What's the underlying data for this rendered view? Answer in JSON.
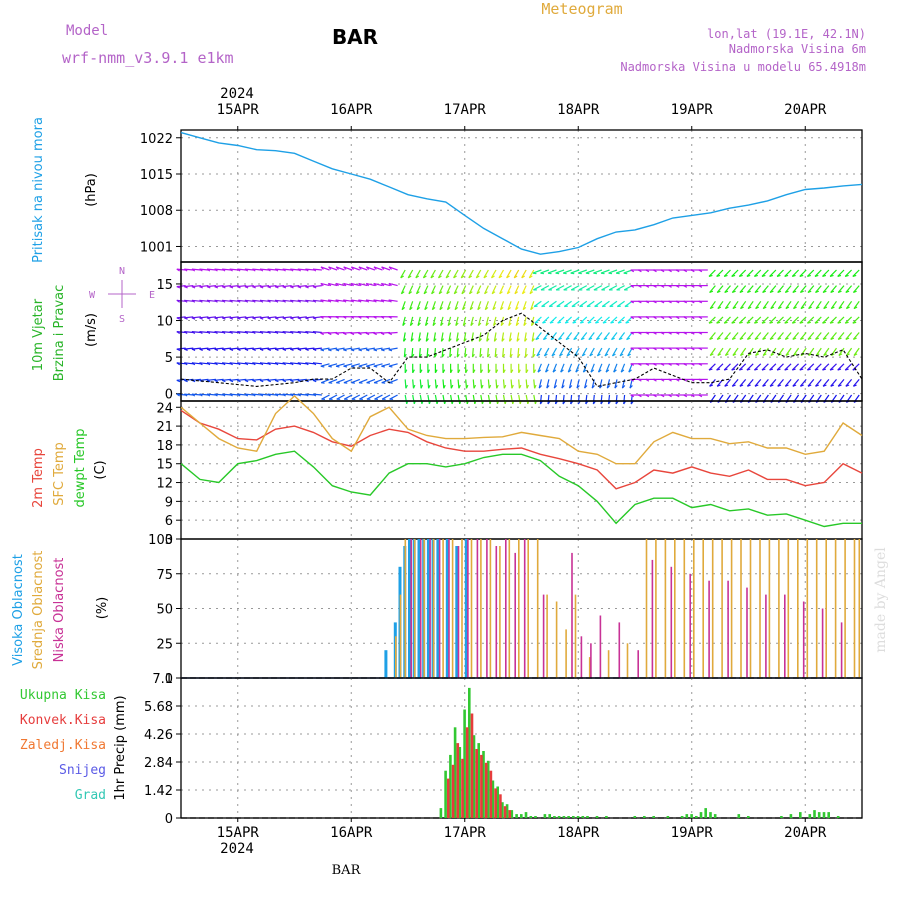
{
  "header": {
    "title": "BAR",
    "model_label": "Model",
    "model_name": "wrf-nmm_v3.9.1 e1km",
    "product": "Meteogram",
    "lonlat": "lon,lat (19.1E, 42.1N)",
    "altitude": "Nadmorska Visina 6m",
    "model_altitude": "Nadmorska Visina u modelu 65.4918m",
    "watermark": "made by Angel",
    "footer_station": "BAR",
    "year": "2024"
  },
  "colors": {
    "pressure": "#1ea0e6",
    "temp2m": "#e8463c",
    "sfc": "#e0aa3c",
    "dewpt": "#28c828",
    "cloud_high": "#1ea0e6",
    "cloud_mid": "#e0aa3c",
    "cloud_low": "#c83296",
    "precip_total": "#32c832",
    "precip_conv": "#e63c3c",
    "wind_label": "#28b428",
    "compass": "#b464c8"
  },
  "chart_data": [
    {
      "type": "line",
      "name": "pressure",
      "ylabel": "Pritisak na nivou mora",
      "unit": "(hPa)",
      "x_ticks": [
        "15APR",
        "16APR",
        "17APR",
        "18APR",
        "19APR",
        "20APR"
      ],
      "y_ticks": [
        1001,
        1008,
        1015,
        1022
      ],
      "ylim": [
        998,
        1023.5
      ],
      "grid": true,
      "x": [
        0,
        4,
        8,
        12,
        16,
        20,
        24,
        28,
        32,
        36,
        40,
        44,
        48,
        52,
        56,
        60,
        64,
        68,
        72,
        76,
        80,
        84,
        88,
        92,
        96,
        100,
        104,
        108,
        112,
        116,
        120,
        124,
        128,
        132,
        136,
        140,
        144
      ],
      "values": [
        1023,
        1022,
        1021,
        1020.5,
        1019.7,
        1019.5,
        1019,
        1017.5,
        1016,
        1015,
        1014,
        1012.5,
        1011,
        1010.2,
        1009.6,
        1007,
        1004.5,
        1002.5,
        1000.5,
        999.5,
        1000,
        1000.8,
        1002.5,
        1003.8,
        1004.2,
        1005.2,
        1006.5,
        1007,
        1007.5,
        1008.4,
        1009,
        1009.8,
        1011,
        1012,
        1012.3,
        1012.7,
        1013
      ]
    },
    {
      "type": "line",
      "name": "wind",
      "ylabel": "10m Vjetar Brzina i Pravac",
      "unit": "(m/s)",
      "compass": [
        "N",
        "W",
        "E",
        "S"
      ],
      "y_ticks": [
        0,
        5,
        10,
        15
      ],
      "ylim": [
        -1,
        18
      ],
      "grid": true,
      "series": [
        {
          "x": [
            0,
            8,
            16,
            24,
            28,
            32,
            36,
            40,
            44,
            48,
            52,
            56,
            60,
            64,
            68,
            72,
            76,
            80,
            84,
            88,
            92,
            96,
            100,
            104,
            108,
            112,
            116,
            120,
            124,
            128,
            132,
            136,
            140,
            144
          ],
          "values": [
            2,
            1.5,
            1,
            1.5,
            2,
            2,
            3.5,
            3.5,
            1.5,
            5,
            5,
            6,
            7,
            8,
            10,
            11,
            9,
            7,
            5,
            1,
            1.5,
            2,
            3.5,
            2.5,
            1.5,
            1.5,
            2,
            5.5,
            6,
            5,
            5.5,
            5,
            6,
            2
          ]
        }
      ]
    },
    {
      "type": "line",
      "name": "temperature",
      "ylabel": [
        "2m Temp",
        "SFC Temp",
        "dewpt Temp"
      ],
      "unit": "(C)",
      "y_ticks": [
        3,
        6,
        9,
        12,
        15,
        18,
        21,
        24
      ],
      "ylim": [
        3,
        25
      ],
      "grid": true,
      "series": [
        {
          "name": "2m Temp",
          "x": [
            0,
            4,
            8,
            12,
            16,
            20,
            24,
            28,
            32,
            36,
            40,
            44,
            48,
            52,
            56,
            60,
            64,
            68,
            72,
            76,
            80,
            84,
            88,
            92,
            96,
            100,
            104,
            108,
            112,
            116,
            120,
            124,
            128,
            132,
            136,
            140,
            144
          ],
          "values": [
            23.5,
            21.5,
            20.5,
            19,
            18.8,
            20.5,
            21,
            20,
            18.5,
            17.8,
            19.5,
            20.5,
            20,
            18.5,
            17.5,
            17,
            17,
            17.3,
            17.5,
            16.5,
            15.8,
            15,
            14,
            11,
            12,
            14,
            13.5,
            14.5,
            13.5,
            13,
            14,
            12.5,
            12.5,
            11.5,
            12,
            15,
            13.5
          ]
        },
        {
          "name": "SFC Temp",
          "x": [
            0,
            4,
            8,
            12,
            16,
            20,
            24,
            28,
            32,
            36,
            40,
            44,
            48,
            52,
            56,
            60,
            64,
            68,
            72,
            76,
            80,
            84,
            88,
            92,
            96,
            100,
            104,
            108,
            112,
            116,
            120,
            124,
            128,
            132,
            136,
            140,
            144
          ],
          "values": [
            24,
            21.5,
            19,
            17.5,
            17,
            23,
            25.8,
            23,
            19,
            17,
            22.5,
            24,
            20.5,
            19.5,
            19,
            19,
            19.2,
            19.3,
            20,
            19.5,
            19,
            17,
            16.5,
            15,
            15,
            18.5,
            20,
            19,
            19,
            18.2,
            18.5,
            17.5,
            17.5,
            16.5,
            17,
            21.5,
            19.5
          ]
        },
        {
          "name": "dewpt Temp",
          "x": [
            0,
            4,
            8,
            12,
            16,
            20,
            24,
            28,
            32,
            36,
            40,
            44,
            48,
            52,
            56,
            60,
            64,
            68,
            72,
            76,
            80,
            84,
            88,
            92,
            96,
            100,
            104,
            108,
            112,
            116,
            120,
            124,
            128,
            132,
            136,
            140,
            144
          ],
          "values": [
            15,
            12.5,
            12,
            15,
            15.5,
            16.5,
            17,
            14.5,
            11.5,
            10.5,
            10,
            13.5,
            15,
            15,
            14.5,
            15,
            16,
            16.5,
            16.5,
            15.5,
            13,
            11.5,
            9,
            5.5,
            8.5,
            9.5,
            9.5,
            8,
            8.5,
            7.5,
            7.8,
            6.8,
            7,
            6,
            5,
            5.5,
            5.5
          ]
        }
      ]
    },
    {
      "type": "bar",
      "name": "cloud_cover",
      "ylabel": [
        "Visoka Oblacnost",
        "Srednja Oblacnost",
        "Niska Oblacnost"
      ],
      "unit": "(%)",
      "y_ticks": [
        0,
        25,
        50,
        75,
        100
      ],
      "ylim": [
        0,
        100
      ],
      "grid": true,
      "series": [
        {
          "name": "Visoka Oblacnost",
          "x": [
            43,
            45,
            46,
            47,
            48,
            49,
            50,
            51,
            52,
            53,
            54,
            56,
            58,
            60
          ],
          "values": [
            20,
            40,
            80,
            95,
            100,
            100,
            100,
            100,
            100,
            100,
            100,
            100,
            95,
            100
          ]
        },
        {
          "name": "Srednja Oblacnost",
          "x": [
            45,
            46,
            47,
            49,
            51,
            53,
            55,
            57,
            59,
            61,
            63,
            65,
            67,
            69,
            71,
            73,
            75,
            77,
            79,
            81,
            83,
            86,
            90,
            94,
            98,
            100,
            102,
            104,
            106,
            108,
            110,
            112,
            114,
            116,
            118,
            120,
            122,
            124,
            126,
            128,
            130,
            132,
            134,
            136,
            138,
            140,
            142,
            143
          ],
          "values": [
            30,
            60,
            100,
            100,
            100,
            100,
            100,
            100,
            100,
            100,
            100,
            100,
            95,
            100,
            100,
            100,
            100,
            60,
            55,
            35,
            60,
            15,
            20,
            25,
            100,
            100,
            100,
            100,
            100,
            100,
            100,
            100,
            100,
            100,
            100,
            100,
            100,
            100,
            100,
            100,
            100,
            100,
            100,
            100,
            100,
            100,
            100,
            100
          ]
        },
        {
          "name": "Niska Oblacnost",
          "x": [
            48,
            50,
            52,
            54,
            56,
            58,
            60,
            62,
            64,
            66,
            68,
            70,
            72,
            76,
            82,
            84,
            86,
            88,
            92,
            96,
            99,
            103,
            107,
            111,
            115,
            119,
            123,
            127,
            131,
            135,
            139
          ],
          "values": [
            100,
            100,
            100,
            100,
            100,
            95,
            100,
            100,
            100,
            95,
            100,
            90,
            100,
            60,
            90,
            30,
            25,
            45,
            40,
            20,
            85,
            80,
            75,
            70,
            70,
            65,
            60,
            60,
            55,
            50,
            40
          ]
        }
      ]
    },
    {
      "type": "bar",
      "name": "precipitation",
      "ylabel": "1hr Precip",
      "unit": "(mm)",
      "legend": [
        "Ukupna Kisa",
        "Konvek.Kisa",
        "Zaledj.Kisa",
        "Snijeg",
        "Grad"
      ],
      "y_ticks": [
        "0",
        "1.42",
        "2.84",
        "4.26",
        "5.68",
        "7.1"
      ],
      "ylim": [
        0,
        7.1
      ],
      "grid": true,
      "x_ticks": [
        "15APR",
        "16APR",
        "17APR",
        "18APR",
        "19APR",
        "20APR"
      ],
      "series": [
        {
          "name": "Ukupna Kisa",
          "x": [
            55,
            56,
            57,
            58,
            59,
            60,
            61,
            62,
            63,
            64,
            65,
            66,
            67,
            68,
            69,
            70,
            71,
            72,
            73,
            74,
            75,
            77,
            78,
            79,
            80,
            81,
            82,
            83,
            84,
            85,
            86,
            88,
            90,
            96,
            98,
            100,
            103,
            106,
            107,
            108,
            109,
            110,
            111,
            112,
            113,
            118,
            120,
            127,
            129,
            131,
            133,
            134,
            135,
            136,
            137,
            139
          ],
          "values": [
            0.5,
            2.4,
            3.2,
            4.6,
            3.6,
            5.5,
            6.6,
            4.2,
            3.8,
            3.4,
            2.9,
            1.9,
            1.6,
            0.8,
            0.7,
            0.4,
            0.2,
            0.2,
            0.3,
            0.1,
            0.1,
            0.2,
            0.2,
            0.1,
            0.1,
            0.1,
            0.1,
            0.1,
            0.1,
            0.1,
            0.1,
            0.1,
            0.1,
            0.1,
            0.1,
            0.1,
            0.1,
            0.1,
            0.2,
            0.2,
            0.1,
            0.3,
            0.5,
            0.3,
            0.2,
            0.2,
            0.1,
            0.1,
            0.2,
            0.3,
            0.2,
            0.4,
            0.3,
            0.3,
            0.3,
            0.1
          ]
        },
        {
          "name": "Konvek.Kisa",
          "x": [
            56,
            57,
            58,
            59,
            60,
            61,
            62,
            63,
            64,
            65,
            66,
            67,
            68,
            69
          ],
          "values": [
            2.0,
            2.7,
            3.8,
            3.0,
            4.6,
            5.3,
            3.5,
            3.2,
            2.8,
            2.4,
            1.5,
            1.2,
            0.6,
            0.4
          ]
        }
      ]
    }
  ]
}
